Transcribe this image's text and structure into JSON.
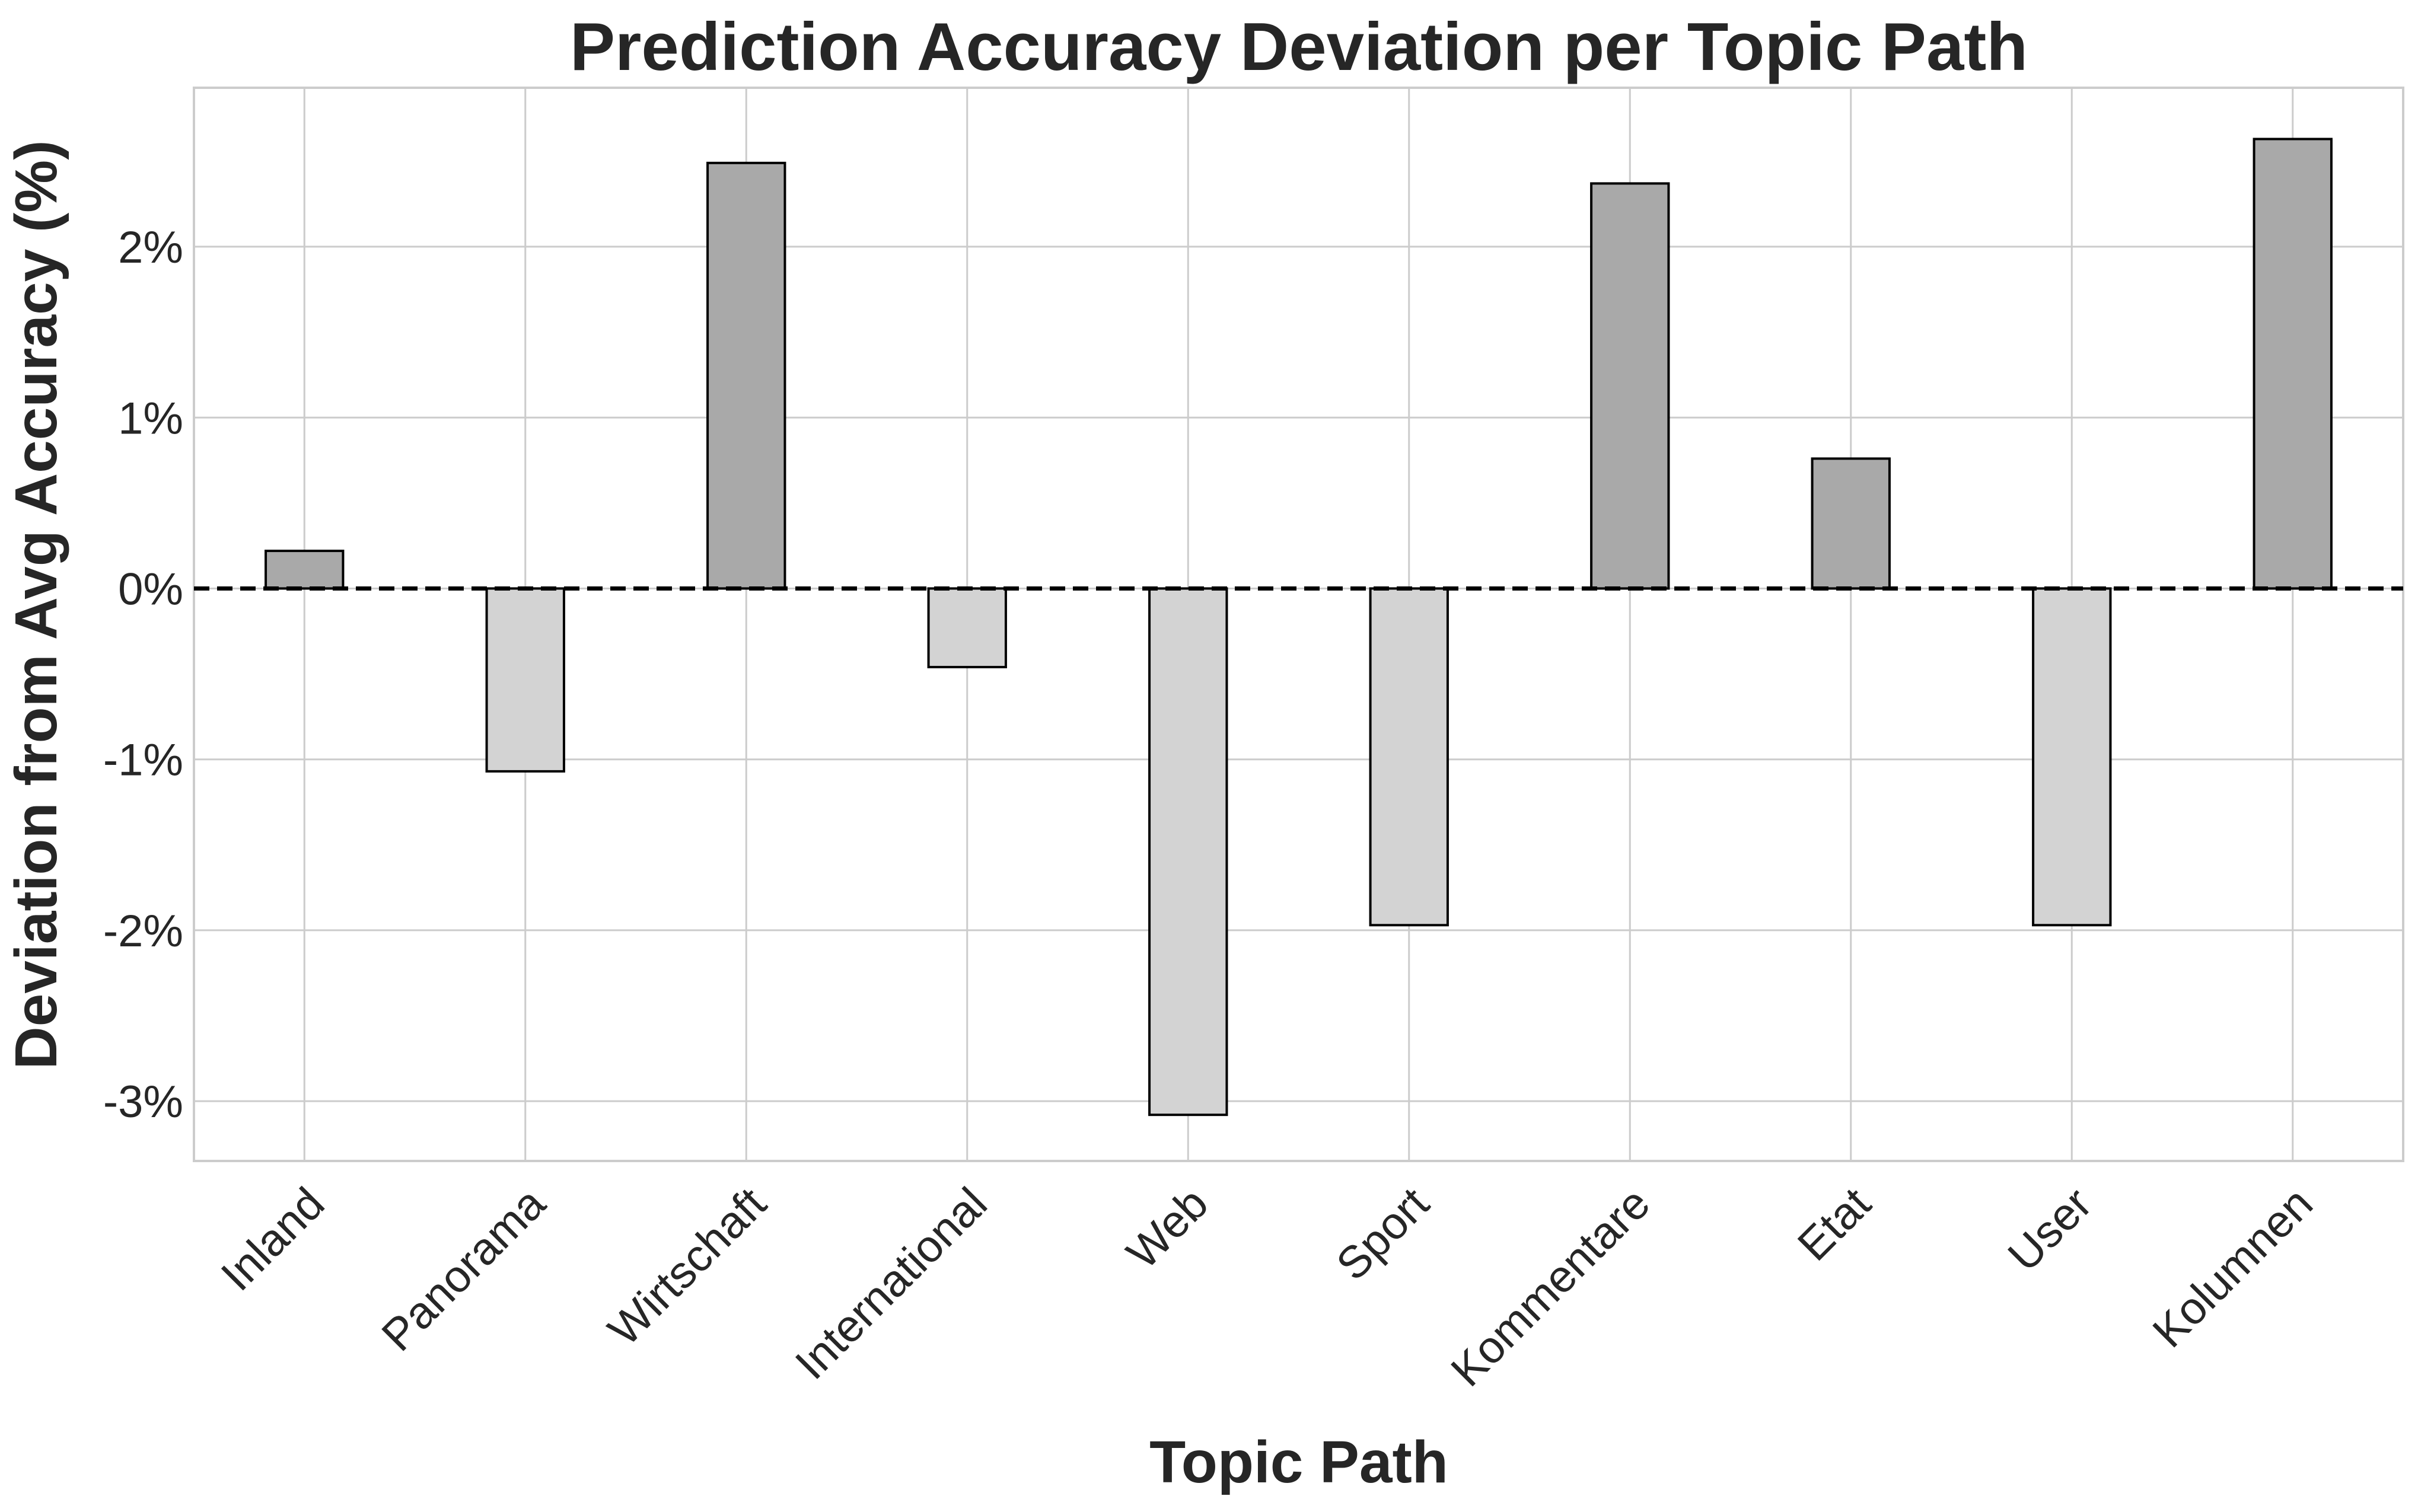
{
  "chart_data": {
    "type": "bar",
    "title": "Prediction Accuracy Deviation per Topic Path",
    "xlabel": "Topic Path",
    "ylabel": "Deviation from Avg Accuracy (%)",
    "categories": [
      "Inland",
      "Panorama",
      "Wirtschaft",
      "International",
      "Web",
      "Sport",
      "Kommentare",
      "Etat",
      "User",
      "Kolumnen"
    ],
    "values": [
      0.22,
      -1.07,
      2.49,
      -0.46,
      -3.08,
      -1.97,
      2.37,
      0.76,
      -1.97,
      2.63
    ],
    "ylim": [
      -3.35,
      2.93
    ],
    "yticks": [
      -3,
      -2,
      -1,
      0,
      1,
      2
    ],
    "ytick_labels": [
      "-3%",
      "-2%",
      "-1%",
      "0%",
      "1%",
      "2%"
    ],
    "grid": true,
    "reference_line": 0,
    "colors": {
      "positive": "#a9a9a9",
      "negative": "#d3d3d3"
    }
  }
}
